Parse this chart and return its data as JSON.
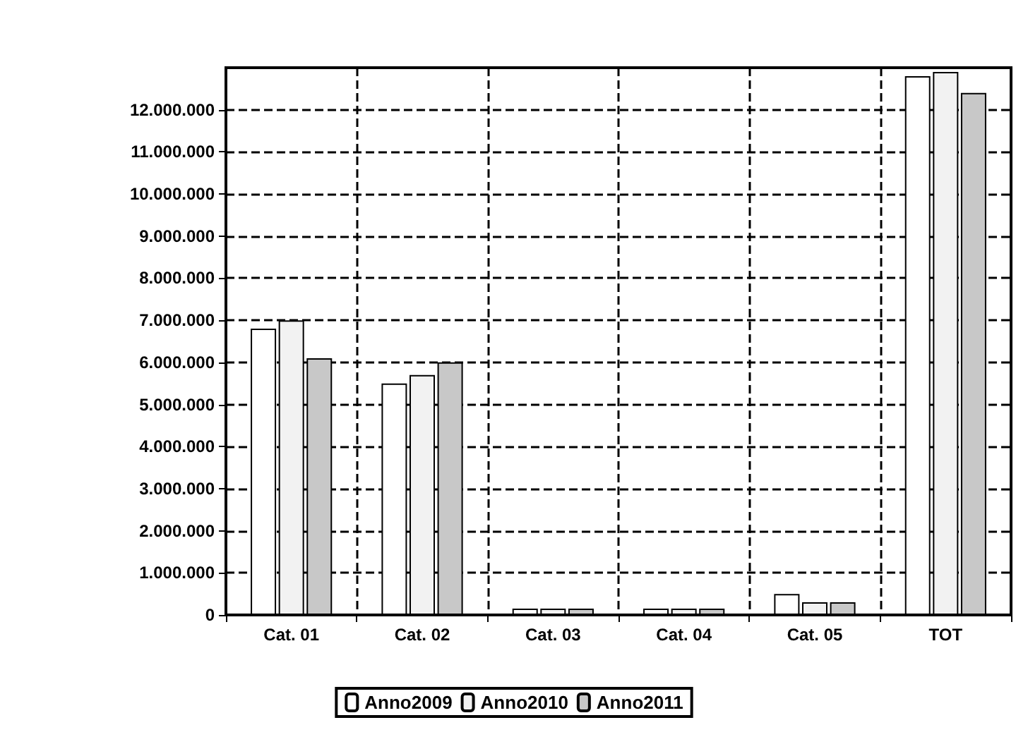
{
  "chart_data": {
    "type": "bar",
    "categories": [
      "Cat. 01",
      "Cat. 02",
      "Cat. 03",
      "Cat. 04",
      "Cat. 05",
      "TOT"
    ],
    "series": [
      {
        "name": "Anno2009",
        "color": "#ffffff",
        "values": [
          6800000,
          5500000,
          150000,
          150000,
          500000,
          12800000
        ]
      },
      {
        "name": "Anno2010",
        "color": "#f2f2f2",
        "values": [
          7000000,
          5700000,
          150000,
          150000,
          300000,
          12900000
        ]
      },
      {
        "name": "Anno2011",
        "color": "#c8c8c8",
        "values": [
          6100000,
          6000000,
          150000,
          150000,
          300000,
          12400000
        ]
      }
    ],
    "ylim": [
      0,
      13000000
    ],
    "yticks": [
      {
        "value": 0,
        "label": "0"
      },
      {
        "value": 1000000,
        "label": "1.000.000"
      },
      {
        "value": 2000000,
        "label": "2.000.000"
      },
      {
        "value": 3000000,
        "label": "3.000.000"
      },
      {
        "value": 4000000,
        "label": "4.000.000"
      },
      {
        "value": 5000000,
        "label": "5.000.000"
      },
      {
        "value": 6000000,
        "label": "6.000.000"
      },
      {
        "value": 7000000,
        "label": "7.000.000"
      },
      {
        "value": 8000000,
        "label": "8.000.000"
      },
      {
        "value": 9000000,
        "label": "9.000.000"
      },
      {
        "value": 10000000,
        "label": "10.000.000"
      },
      {
        "value": 11000000,
        "label": "11.000.000"
      },
      {
        "value": 12000000,
        "label": "12.000.000"
      }
    ],
    "grid": true,
    "legend": "bottom"
  }
}
